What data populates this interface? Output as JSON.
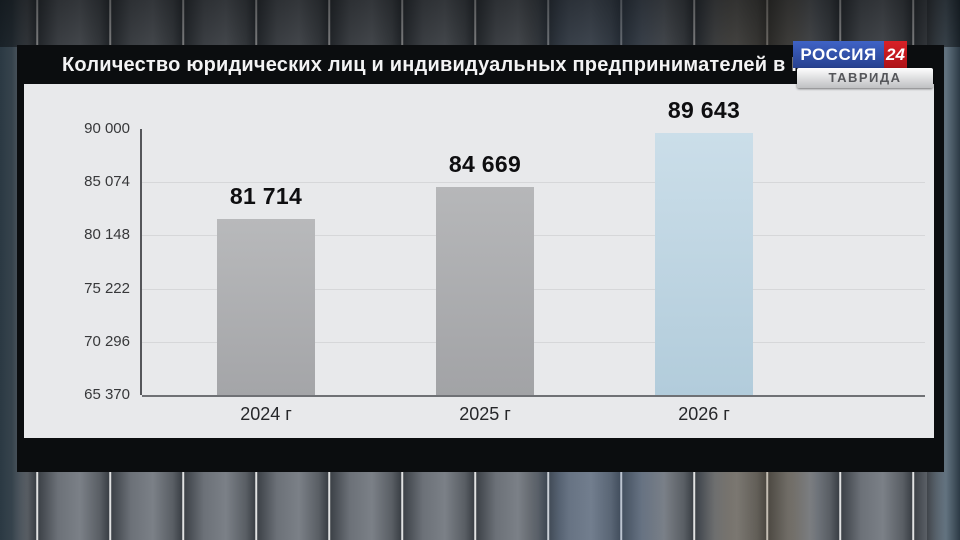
{
  "header": {
    "channel": "РОССИЯ",
    "channel_number": "24",
    "region": "ТАВРИДА",
    "logo_blue": "#2f4da6",
    "logo_red": "#c21a1f"
  },
  "chart_data": {
    "type": "bar",
    "title": "Количество юридических лиц и индивидуальных предпринимателей в РК",
    "categories": [
      "2024 г",
      "2025 г",
      "2026 г"
    ],
    "values": [
      81714,
      84669,
      89643
    ],
    "value_labels": [
      "81 714",
      "84 669",
      "89 643"
    ],
    "y_ticks": [
      "90 000",
      "85 074",
      "80 148",
      "75 222",
      "70 296",
      "65 370"
    ],
    "y_tick_values": [
      90000,
      85074,
      80148,
      75222,
      70296,
      65370
    ],
    "ylim": [
      65370,
      90000
    ],
    "xlabel": "",
    "ylabel": "",
    "grid": true,
    "legend": false,
    "highlight_index": 2,
    "bar_gradients": [
      [
        "#b8b9bb",
        "#a4a5a8"
      ],
      [
        "#b6b7b9",
        "#a2a3a6"
      ],
      [
        "#cbdee9",
        "#b2ccdb"
      ]
    ],
    "panel_background": "#e8e9eb",
    "frame_background": "#0b0d0f"
  }
}
